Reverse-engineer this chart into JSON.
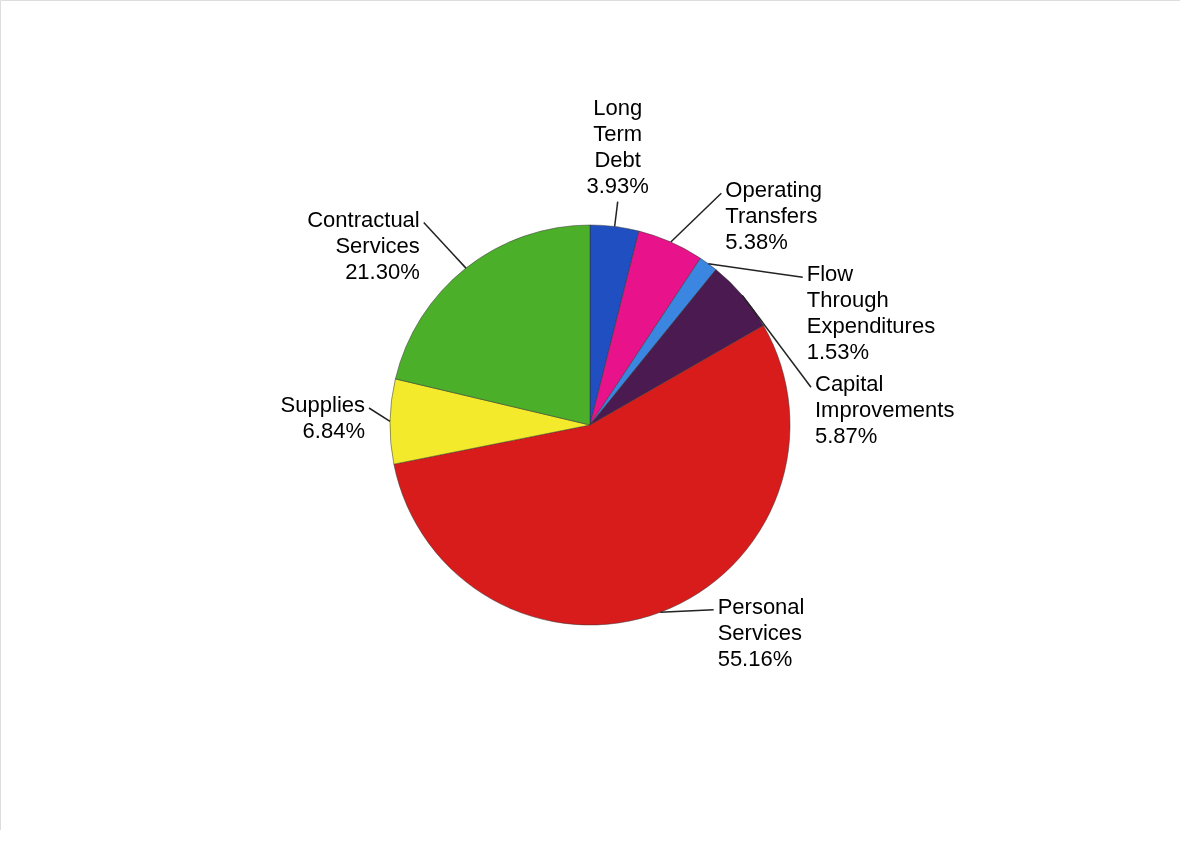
{
  "chart_data": {
    "type": "pie",
    "categories": [
      "Long Term Debt",
      "Operating Transfers",
      "Flow Through Expenditures",
      "Capital Improvements",
      "Personal Services",
      "Supplies",
      "Contractual Services"
    ],
    "values": [
      3.93,
      5.38,
      1.53,
      5.87,
      55.16,
      6.84,
      21.3
    ],
    "value_labels": [
      "3.93%",
      "5.38%",
      "1.53%",
      "5.87%",
      "55.16%",
      "6.84%",
      "21.30%"
    ],
    "colors": [
      "#1f4fc0",
      "#e8138a",
      "#3a86e0",
      "#4a1a50",
      "#d81c1c",
      "#f2ea2a",
      "#4caf2a"
    ]
  }
}
